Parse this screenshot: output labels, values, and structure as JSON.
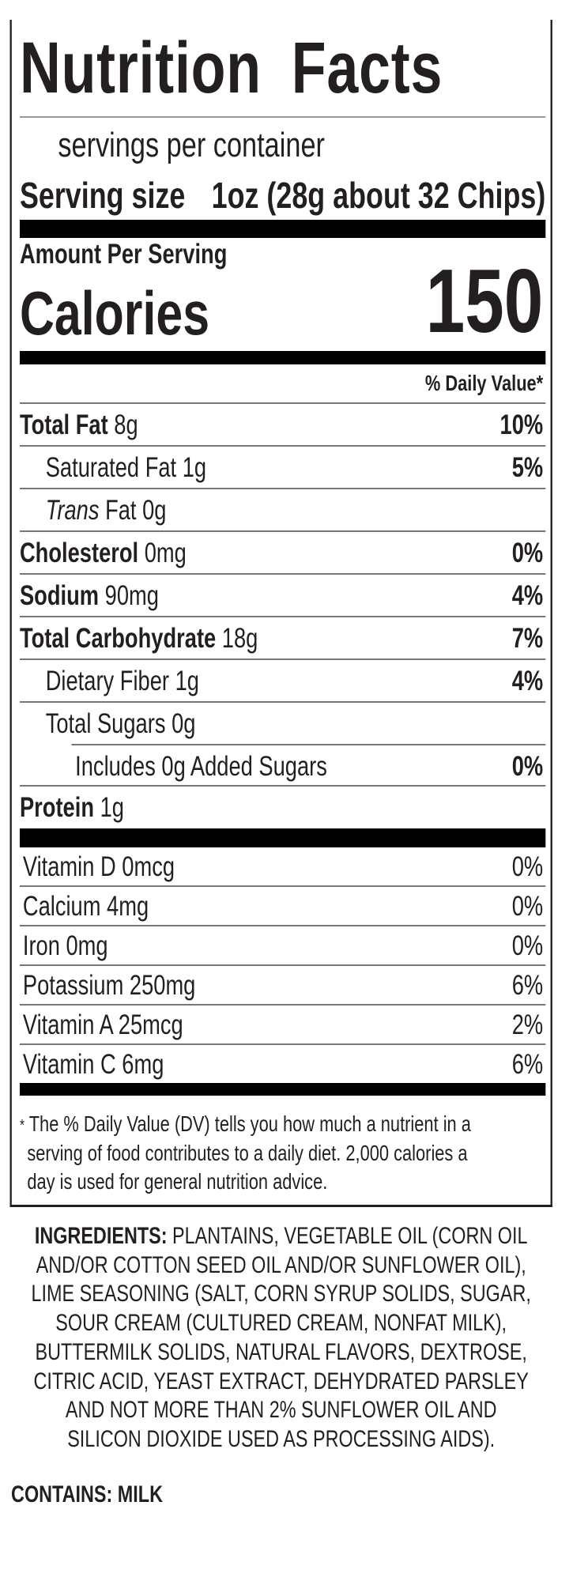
{
  "label": {
    "title": "Nutrition Facts",
    "servings_per_container": "servings per container",
    "serving_size_label": "Serving size",
    "serving_size_value": "1oz (28g about 32 Chips)",
    "amount_per_serving": "Amount Per Serving",
    "calories_label": "Calories",
    "calories_value": "150",
    "daily_value_header": "% Daily Value*",
    "nutrients": [
      {
        "name": "Total Fat",
        "amount": "8g",
        "dv": "10%"
      },
      {
        "name": "Saturated Fat",
        "amount": "1g",
        "dv": "5%"
      },
      {
        "name_italic": "Trans",
        "name": "Fat",
        "amount": "0g",
        "dv": ""
      },
      {
        "name": "Cholesterol",
        "amount": "0mg",
        "dv": "0%"
      },
      {
        "name": "Sodium",
        "amount": "90mg",
        "dv": "4%"
      },
      {
        "name": "Total Carbohydrate",
        "amount": "18g",
        "dv": "7%"
      },
      {
        "name": "Dietary Fiber",
        "amount": "1g",
        "dv": "4%"
      },
      {
        "name": "Total Sugars",
        "amount": "0g",
        "dv": ""
      },
      {
        "name": "Includes 0g Added Sugars",
        "amount": "",
        "dv": "0%"
      },
      {
        "name": "Protein",
        "amount": "1g",
        "dv": ""
      }
    ],
    "vitamins": [
      {
        "text": "Vitamin D 0mcg",
        "dv": "0%"
      },
      {
        "text": "Calcium 4mg",
        "dv": "0%"
      },
      {
        "text": "Iron 0mg",
        "dv": "0%"
      },
      {
        "text": "Potassium 250mg",
        "dv": "6%"
      },
      {
        "text": "Vitamin A 25mcg",
        "dv": "2%"
      },
      {
        "text": "Vitamin C 6mg",
        "dv": "6%"
      }
    ],
    "footnote_asterisk": "*",
    "footnote_lines": [
      "The % Daily Value (DV) tells you how much a nutrient in a",
      "serving of food contributes to a daily diet. 2,000 calories a",
      "day is used for general nutrition advice."
    ]
  },
  "ingredients": {
    "heading": "INGREDIENTS:",
    "lines": [
      " PLANTAINS, VEGETABLE OIL (CORN OIL",
      "AND/OR COTTON SEED OIL AND/OR SUNFLOWER OIL),",
      "LIME SEASONING (SALT, CORN SYRUP SOLIDS, SUGAR,",
      "SOUR CREAM (CULTURED CREAM, NONFAT MILK),",
      "BUTTERMILK SOLIDS, NATURAL FLAVORS, DEXTROSE,",
      "CITRIC ACID, YEAST EXTRACT, DEHYDRATED PARSLEY",
      "AND NOT MORE THAN 2% SUNFLOWER OIL AND",
      "SILICON DIOXIDE USED AS PROCESSING AIDS)."
    ]
  },
  "contains": "CONTAINS: MILK"
}
